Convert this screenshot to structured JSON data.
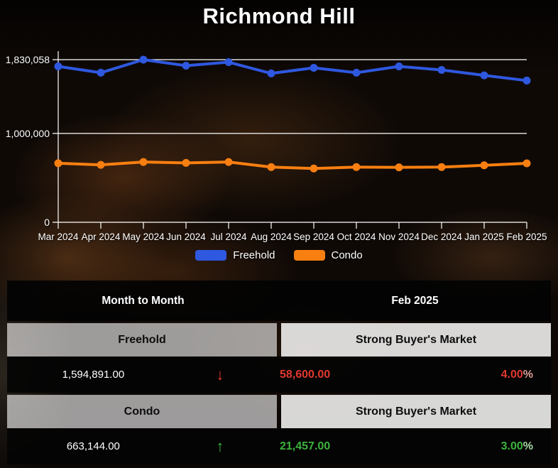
{
  "page": {
    "title": "Richmond Hill"
  },
  "chart_data": {
    "type": "line",
    "x": [
      "Mar 2024",
      "Apr 2024",
      "May 2024",
      "Jun 2024",
      "Jul 2024",
      "Aug 2024",
      "Sep 2024",
      "Oct 2024",
      "Nov 2024",
      "Dec 2024",
      "Jan 2025",
      "Feb 2025"
    ],
    "series": [
      {
        "name": "Freehold",
        "color": "#2f58e0",
        "values": [
          1754000,
          1683000,
          1830058,
          1762000,
          1802000,
          1675000,
          1738000,
          1683000,
          1754000,
          1714000,
          1653491,
          1594891
        ]
      },
      {
        "name": "Condo",
        "color": "#f97f11",
        "values": [
          664000,
          646000,
          678000,
          668000,
          678000,
          621000,
          605000,
          621000,
          618000,
          621000,
          641687,
          663144
        ]
      }
    ],
    "yticks": [
      {
        "label": "1,830,058",
        "value": 1830058
      },
      {
        "label": "1,000,000",
        "value": 1000000
      },
      {
        "label": "0",
        "value": 0
      }
    ],
    "ylim": [
      0,
      1830058
    ],
    "grid": true,
    "legend_position": "bottom",
    "axis_color": "#ffffff"
  },
  "legend": [
    {
      "label": "Freehold",
      "color": "#2f58e0"
    },
    {
      "label": "Condo",
      "color": "#f97f11"
    }
  ],
  "table": {
    "header": {
      "left": "Month to Month",
      "right": "Feb 2025"
    },
    "sections": [
      {
        "name": "Freehold",
        "market": "Strong Buyer's Market",
        "value": "1,594,891.00",
        "direction": "down",
        "arrow": "↓",
        "change_value": "58,600.00",
        "change_percent": "4.00",
        "percent_sign": "%",
        "color": "#e2382f",
        "sign_color": "#dd9e97"
      },
      {
        "name": "Condo",
        "market": "Strong Buyer's Market",
        "value": "663,144.00",
        "direction": "up",
        "arrow": "↑",
        "change_value": "21,457.00",
        "change_percent": "3.00",
        "percent_sign": "%",
        "color": "#3cb43c",
        "sign_color": "#a6d9a6"
      }
    ]
  }
}
